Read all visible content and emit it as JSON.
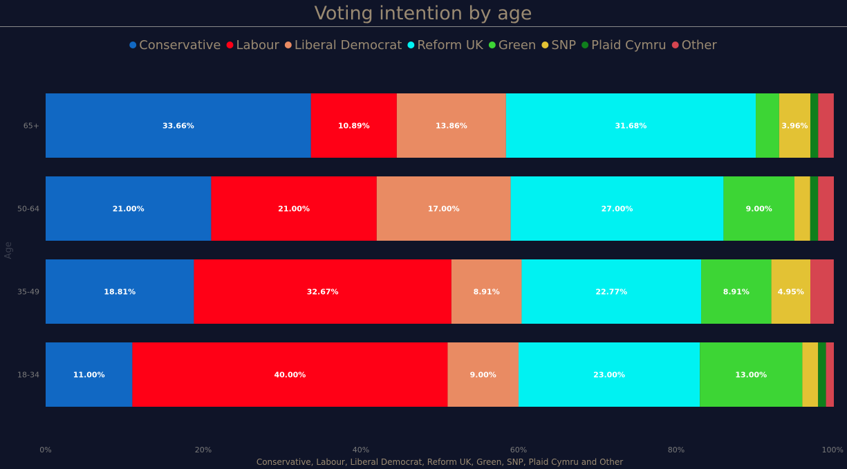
{
  "chart_data": {
    "type": "bar",
    "orientation": "horizontal",
    "stacked": "percent",
    "title": "Voting intention by age",
    "xlabel": "Conservative, Labour, Liberal Democrat, Reform UK, Green, SNP, Plaid Cymru and Other",
    "ylabel": "Age",
    "xlim": [
      0,
      100
    ],
    "x_ticks": [
      "0%",
      "20%",
      "40%",
      "60%",
      "80%",
      "100%"
    ],
    "legend_position": "top",
    "grid": false,
    "categories": [
      "65+",
      "50-64",
      "35-49",
      "18-34"
    ],
    "series": [
      {
        "name": "Conservative",
        "color": "#1168c3",
        "values": [
          33.66,
          21.0,
          18.81,
          11.0
        ],
        "labels": [
          "33.66%",
          "21.00%",
          "18.81%",
          "11.00%"
        ]
      },
      {
        "name": "Labour",
        "color": "#ff0016",
        "values": [
          10.89,
          21.0,
          32.67,
          40.0
        ],
        "labels": [
          "10.89%",
          "21.00%",
          "32.67%",
          "40.00%"
        ]
      },
      {
        "name": "Liberal Democrat",
        "color": "#e98b63",
        "values": [
          13.86,
          17.0,
          8.91,
          9.0
        ],
        "labels": [
          "13.86%",
          "17.00%",
          "8.91%",
          "9.00%"
        ]
      },
      {
        "name": "Reform UK",
        "color": "#00f2f2",
        "values": [
          31.68,
          27.0,
          22.77,
          23.0
        ],
        "labels": [
          "31.68%",
          "27.00%",
          "22.77%",
          "23.00%"
        ]
      },
      {
        "name": "Green",
        "color": "#3dd535",
        "values": [
          2.97,
          9.0,
          8.91,
          13.0
        ],
        "labels": [
          "",
          "9.00%",
          "8.91%",
          "13.00%"
        ]
      },
      {
        "name": "SNP",
        "color": "#e3c234",
        "values": [
          3.96,
          2.0,
          4.95,
          2.0
        ],
        "labels": [
          "3.96%",
          "",
          "4.95%",
          ""
        ]
      },
      {
        "name": "Plaid Cymru",
        "color": "#0f7f1c",
        "values": [
          0.99,
          1.0,
          0.0,
          1.0
        ],
        "labels": [
          "",
          "",
          "",
          ""
        ]
      },
      {
        "name": "Other",
        "color": "#d64550",
        "values": [
          1.98,
          2.0,
          2.97,
          1.0
        ],
        "labels": [
          "",
          "",
          "",
          ""
        ]
      }
    ]
  }
}
